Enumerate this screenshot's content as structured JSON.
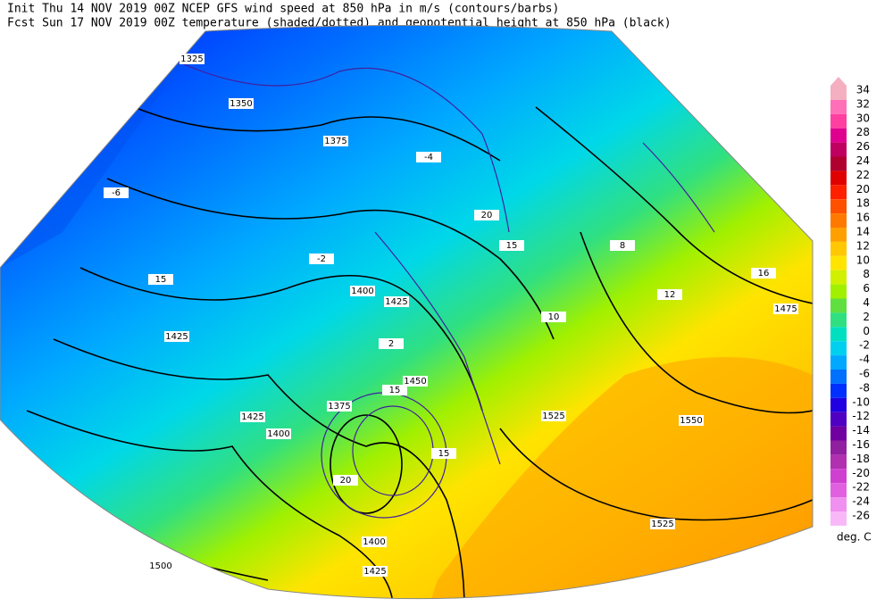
{
  "header": {
    "line1": "Init  Thu 14 NOV 2019 00Z  NCEP GFS wind speed at 850 hPa in m/s (contours/barbs)",
    "line2": "Fcst Sun 17 NOV 2019 00Z  temperature (shaded/dotted) and geopotential height at 850 hPa (black)"
  },
  "legend": {
    "levels": [
      34,
      32,
      30,
      28,
      26,
      24,
      22,
      20,
      18,
      16,
      14,
      12,
      10,
      8,
      6,
      4,
      2,
      0,
      -2,
      -4,
      -6,
      -8,
      -10,
      -12,
      -14,
      -16,
      -18,
      -20,
      -22,
      -24,
      -26
    ],
    "colors": [
      "#f4b0c0",
      "#ff70b8",
      "#ff40a0",
      "#e00090",
      "#c00060",
      "#b00030",
      "#e00000",
      "#ff2000",
      "#ff5000",
      "#ff7800",
      "#ffa000",
      "#ffc800",
      "#ffe400",
      "#d0f000",
      "#a0f000",
      "#60e040",
      "#30e080",
      "#00e0c0",
      "#00d0f0",
      "#00a8ff",
      "#0070ff",
      "#0030ff",
      "#2000e0",
      "#5000c0",
      "#7000a0",
      "#9020a0",
      "#b030b0",
      "#d040d0",
      "#e060e0",
      "#f090f0",
      "#f8b8f8"
    ],
    "unit": "deg. C"
  },
  "map": {
    "labels": [
      1325,
      1350,
      1375,
      1400,
      1425,
      1450,
      1425,
      1400,
      1375,
      1425,
      1400,
      1425,
      1500,
      1525,
      1550,
      1525,
      1475,
      15,
      20,
      15,
      20,
      15,
      15,
      12,
      10,
      -6,
      -4,
      -2,
      2,
      8,
      16
    ]
  }
}
